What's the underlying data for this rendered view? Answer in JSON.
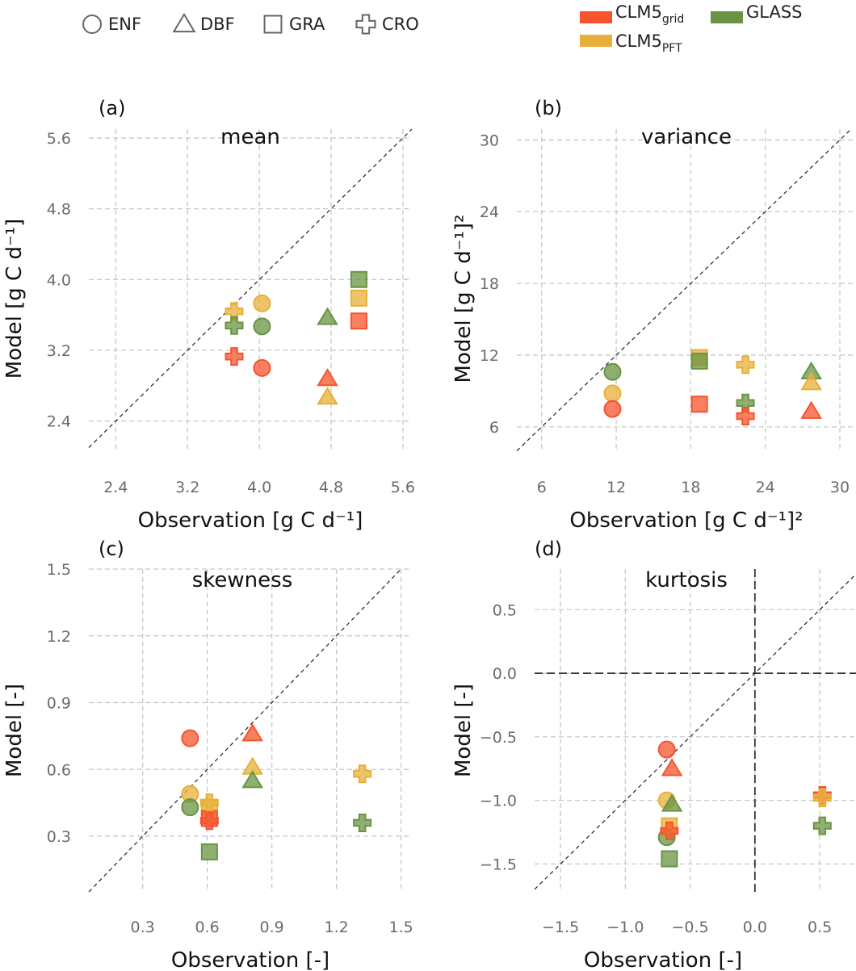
{
  "legend": {
    "shapes": [
      {
        "key": "ENF",
        "label": "ENF",
        "shape": "circle"
      },
      {
        "key": "DBF",
        "label": "DBF",
        "shape": "triangle"
      },
      {
        "key": "GRA",
        "label": "GRA",
        "shape": "square"
      },
      {
        "key": "CRO",
        "label": "CRO",
        "shape": "plus"
      }
    ],
    "sources": [
      {
        "key": "grid",
        "label": "CLM5",
        "sub": "grid",
        "color": "#f5542e"
      },
      {
        "key": "glass",
        "label": "GLASS",
        "sub": "",
        "color": "#6a9444"
      },
      {
        "key": "pft",
        "label": "CLM5",
        "sub": "PFT",
        "color": "#e8b03a"
      }
    ]
  },
  "chart_data": [
    {
      "panel": "(a)",
      "title": "mean",
      "type": "scatter",
      "xlabel": "Observation [g C d⁻¹]",
      "ylabel": "Model [g C d⁻¹]",
      "xlim": [
        2.1,
        5.7
      ],
      "ylim": [
        2.05,
        5.7
      ],
      "xticks": [
        2.4,
        3.2,
        4.0,
        4.8,
        5.6
      ],
      "yticks": [
        2.4,
        3.2,
        4.0,
        4.8,
        5.6
      ],
      "xtick_labels": [
        "2.4",
        "3.2",
        "4.0",
        "4.8",
        "5.6"
      ],
      "ytick_labels": [
        "2.4",
        "3.2",
        "4.0",
        "4.8",
        "5.6"
      ],
      "points": [
        {
          "shape": "ENF",
          "source": "pft",
          "x": 4.03,
          "y": 3.73
        },
        {
          "shape": "ENF",
          "source": "glass",
          "x": 4.03,
          "y": 3.47
        },
        {
          "shape": "ENF",
          "source": "grid",
          "x": 4.03,
          "y": 3.0
        },
        {
          "shape": "DBF",
          "source": "glass",
          "x": 4.76,
          "y": 3.57
        },
        {
          "shape": "DBF",
          "source": "grid",
          "x": 4.76,
          "y": 2.88
        },
        {
          "shape": "DBF",
          "source": "pft",
          "x": 4.76,
          "y": 2.67
        },
        {
          "shape": "GRA",
          "source": "glass",
          "x": 5.11,
          "y": 4.0
        },
        {
          "shape": "GRA",
          "source": "pft",
          "x": 5.11,
          "y": 3.79
        },
        {
          "shape": "GRA",
          "source": "grid",
          "x": 5.11,
          "y": 3.53
        },
        {
          "shape": "CRO",
          "source": "pft",
          "x": 3.72,
          "y": 3.64
        },
        {
          "shape": "CRO",
          "source": "glass",
          "x": 3.72,
          "y": 3.48
        },
        {
          "shape": "CRO",
          "source": "grid",
          "x": 3.72,
          "y": 3.13
        }
      ]
    },
    {
      "panel": "(b)",
      "title": "variance",
      "type": "scatter",
      "xlabel": "Observation [g C d⁻¹]²",
      "ylabel": "Model [g C d⁻¹]²",
      "xlim": [
        4.0,
        31.3
      ],
      "ylim": [
        3.9,
        30.9
      ],
      "xticks": [
        6,
        12,
        18,
        24,
        30
      ],
      "yticks": [
        6,
        12,
        18,
        24,
        30
      ],
      "xtick_labels": [
        "6",
        "12",
        "18",
        "24",
        "30"
      ],
      "ytick_labels": [
        "6",
        "12",
        "18",
        "24",
        "30"
      ],
      "points": [
        {
          "shape": "ENF",
          "source": "glass",
          "x": 11.7,
          "y": 10.6
        },
        {
          "shape": "ENF",
          "source": "pft",
          "x": 11.7,
          "y": 8.8
        },
        {
          "shape": "ENF",
          "source": "grid",
          "x": 11.7,
          "y": 7.5
        },
        {
          "shape": "DBF",
          "source": "glass",
          "x": 27.7,
          "y": 10.6
        },
        {
          "shape": "DBF",
          "source": "pft",
          "x": 27.7,
          "y": 9.7
        },
        {
          "shape": "DBF",
          "source": "grid",
          "x": 27.7,
          "y": 7.3
        },
        {
          "shape": "GRA",
          "source": "pft",
          "x": 18.7,
          "y": 11.8
        },
        {
          "shape": "GRA",
          "source": "glass",
          "x": 18.7,
          "y": 11.5
        },
        {
          "shape": "GRA",
          "source": "grid",
          "x": 18.7,
          "y": 7.9
        },
        {
          "shape": "CRO",
          "source": "pft",
          "x": 22.4,
          "y": 11.2
        },
        {
          "shape": "CRO",
          "source": "glass",
          "x": 22.4,
          "y": 8.0
        },
        {
          "shape": "CRO",
          "source": "grid",
          "x": 22.4,
          "y": 6.9
        }
      ]
    },
    {
      "panel": "(c)",
      "title": "skewness",
      "type": "scatter",
      "xlabel": "Observation [-]",
      "ylabel": "Model [-]",
      "xlim": [
        0.05,
        1.55
      ],
      "ylim": [
        0.05,
        1.5
      ],
      "xticks": [
        0.3,
        0.6,
        0.9,
        1.2,
        1.5
      ],
      "yticks": [
        0.3,
        0.6,
        0.9,
        1.2,
        1.5
      ],
      "xtick_labels": [
        "0.3",
        "0.6",
        "0.9",
        "1.2",
        "1.5"
      ],
      "ytick_labels": [
        "0.3",
        "0.6",
        "0.9",
        "1.2",
        "1.5"
      ],
      "points": [
        {
          "shape": "ENF",
          "source": "grid",
          "x": 0.52,
          "y": 0.74
        },
        {
          "shape": "ENF",
          "source": "pft",
          "x": 0.52,
          "y": 0.49
        },
        {
          "shape": "ENF",
          "source": "glass",
          "x": 0.52,
          "y": 0.43
        },
        {
          "shape": "DBF",
          "source": "grid",
          "x": 0.81,
          "y": 0.76
        },
        {
          "shape": "DBF",
          "source": "pft",
          "x": 0.81,
          "y": 0.61
        },
        {
          "shape": "DBF",
          "source": "glass",
          "x": 0.81,
          "y": 0.55
        },
        {
          "shape": "GRA",
          "source": "pft",
          "x": 0.61,
          "y": 0.43
        },
        {
          "shape": "GRA",
          "source": "grid",
          "x": 0.61,
          "y": 0.38
        },
        {
          "shape": "GRA",
          "source": "glass",
          "x": 0.61,
          "y": 0.23
        },
        {
          "shape": "CRO",
          "source": "pft",
          "x": 0.61,
          "y": 0.45
        },
        {
          "shape": "CRO",
          "source": "grid",
          "x": 0.61,
          "y": 0.37
        },
        {
          "shape": "CRO",
          "source": "pft",
          "x": 1.32,
          "y": 0.58
        },
        {
          "shape": "CRO",
          "source": "glass",
          "x": 1.32,
          "y": 0.36
        }
      ]
    },
    {
      "panel": "(d)",
      "title": "kurtosis",
      "type": "scatter",
      "xlabel": "Observation [-]",
      "ylabel": "Model [-]",
      "xlim": [
        -1.7,
        0.78
      ],
      "ylim": [
        -1.72,
        0.82
      ],
      "xticks": [
        -1.5,
        -1.0,
        -0.5,
        0.0,
        0.5
      ],
      "yticks": [
        -1.5,
        -1.0,
        -0.5,
        0.0,
        0.5
      ],
      "xtick_labels": [
        "−1.5",
        "−1.0",
        "−0.5",
        "0.0",
        "0.5"
      ],
      "ytick_labels": [
        "−1.5",
        "−1.0",
        "−0.5",
        "0.0",
        "0.5"
      ],
      "zero_lines": true,
      "points": [
        {
          "shape": "ENF",
          "source": "grid",
          "x": -0.68,
          "y": -0.6
        },
        {
          "shape": "ENF",
          "source": "pft",
          "x": -0.68,
          "y": -1.0
        },
        {
          "shape": "ENF",
          "source": "glass",
          "x": -0.68,
          "y": -1.29
        },
        {
          "shape": "DBF",
          "source": "grid",
          "x": -0.64,
          "y": -0.75
        },
        {
          "shape": "DBF",
          "source": "glass",
          "x": -0.64,
          "y": -1.03
        },
        {
          "shape": "GRA",
          "source": "pft",
          "x": -0.66,
          "y": -1.2
        },
        {
          "shape": "GRA",
          "source": "glass",
          "x": -0.66,
          "y": -1.46
        },
        {
          "shape": "CRO",
          "source": "grid",
          "x": -0.66,
          "y": -1.24
        },
        {
          "shape": "CRO",
          "source": "grid",
          "x": 0.52,
          "y": -0.96
        },
        {
          "shape": "CRO",
          "source": "pft",
          "x": 0.52,
          "y": -0.98
        },
        {
          "shape": "CRO",
          "source": "glass",
          "x": 0.52,
          "y": -1.2
        }
      ]
    }
  ]
}
